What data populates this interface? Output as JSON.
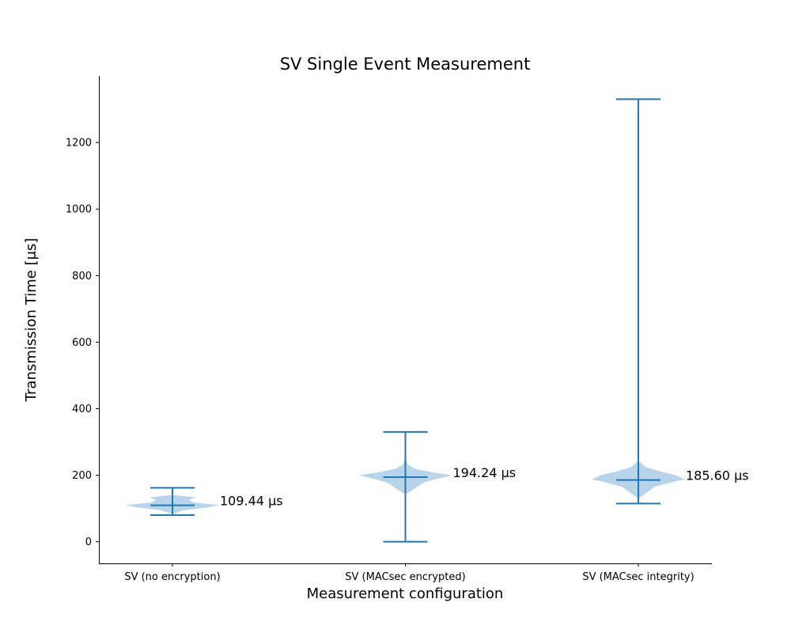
{
  "chart_data": {
    "type": "violin",
    "title": "SV Single Event Measurement",
    "xlabel": "Measurement configuration",
    "ylabel": "Transmission Time [μs]",
    "ylim": [
      -65,
      1400
    ],
    "yticks": [
      0,
      200,
      400,
      600,
      800,
      1000,
      1200
    ],
    "grid": false,
    "legend": "none",
    "colors": {
      "line": "#1f77b4",
      "body": "#b7d4ea"
    },
    "categories": [
      "SV (no encryption)",
      "SV (MACsec encrypted)",
      "SV (MACsec integrity)"
    ],
    "series": [
      {
        "min": 80,
        "max": 162,
        "median": 109.44,
        "annotation": "109.44 μs",
        "distribution": [
          [
            84,
            0.02
          ],
          [
            95,
            0.25
          ],
          [
            104,
            0.8
          ],
          [
            110,
            1.0
          ],
          [
            118,
            0.45
          ],
          [
            126,
            0.35
          ],
          [
            133,
            0.5
          ],
          [
            140,
            0.05
          ]
        ]
      },
      {
        "min": 0,
        "max": 330,
        "median": 194.24,
        "annotation": "194.24 μs",
        "distribution": [
          [
            145,
            0.03
          ],
          [
            158,
            0.18
          ],
          [
            168,
            0.28
          ],
          [
            178,
            0.4
          ],
          [
            190,
            0.7
          ],
          [
            200,
            1.0
          ],
          [
            208,
            0.6
          ],
          [
            220,
            0.2
          ],
          [
            232,
            0.05
          ],
          [
            245,
            0.02
          ]
        ]
      },
      {
        "min": 115,
        "max": 1330,
        "median": 185.6,
        "annotation": "185.60 μs",
        "distribution": [
          [
            132,
            0.02
          ],
          [
            150,
            0.2
          ],
          [
            165,
            0.35
          ],
          [
            178,
            0.7
          ],
          [
            188,
            1.0
          ],
          [
            200,
            0.8
          ],
          [
            212,
            0.45
          ],
          [
            225,
            0.15
          ],
          [
            240,
            0.03
          ]
        ]
      }
    ]
  }
}
